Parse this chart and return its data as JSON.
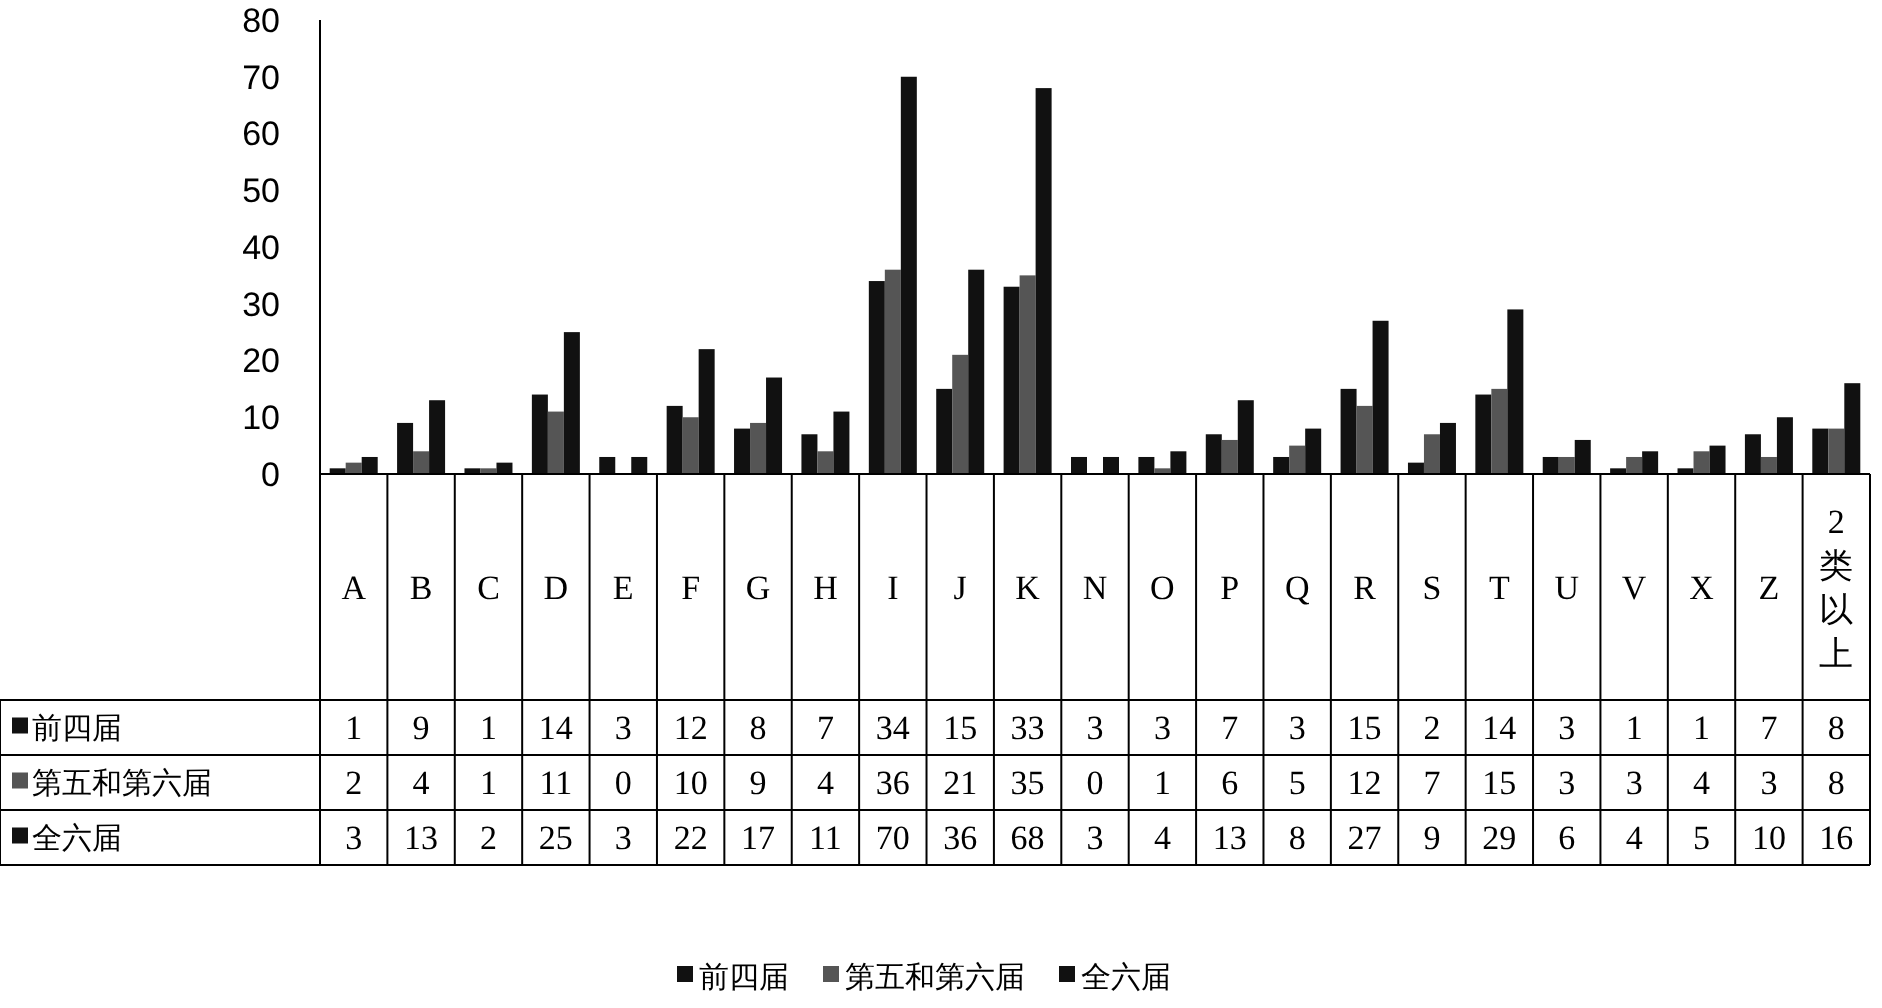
{
  "chart_data": {
    "type": "bar",
    "categories": [
      "A",
      "B",
      "C",
      "D",
      "E",
      "F",
      "G",
      "H",
      "I",
      "J",
      "K",
      "N",
      "O",
      "P",
      "Q",
      "R",
      "S",
      "T",
      "U",
      "V",
      "X",
      "Z",
      "2类以上"
    ],
    "series": [
      {
        "name": "前四届",
        "color": "#111111",
        "values": [
          1,
          9,
          1,
          14,
          3,
          12,
          8,
          7,
          34,
          15,
          33,
          3,
          3,
          7,
          3,
          15,
          2,
          14,
          3,
          1,
          1,
          7,
          8
        ]
      },
      {
        "name": "第五和第六届",
        "color": "#555555",
        "values": [
          2,
          4,
          1,
          11,
          0,
          10,
          9,
          4,
          36,
          21,
          35,
          0,
          1,
          6,
          5,
          12,
          7,
          15,
          3,
          3,
          4,
          3,
          8
        ]
      },
      {
        "name": "全六届",
        "color": "#111111",
        "values": [
          3,
          13,
          2,
          25,
          3,
          22,
          17,
          11,
          70,
          36,
          68,
          3,
          4,
          13,
          8,
          27,
          9,
          29,
          6,
          4,
          5,
          10,
          16
        ]
      }
    ],
    "ylim": [
      0,
      80
    ],
    "yticks": [
      0,
      10,
      20,
      30,
      40,
      50,
      60,
      70,
      80
    ],
    "data_labels": true,
    "legend": "bottom"
  }
}
